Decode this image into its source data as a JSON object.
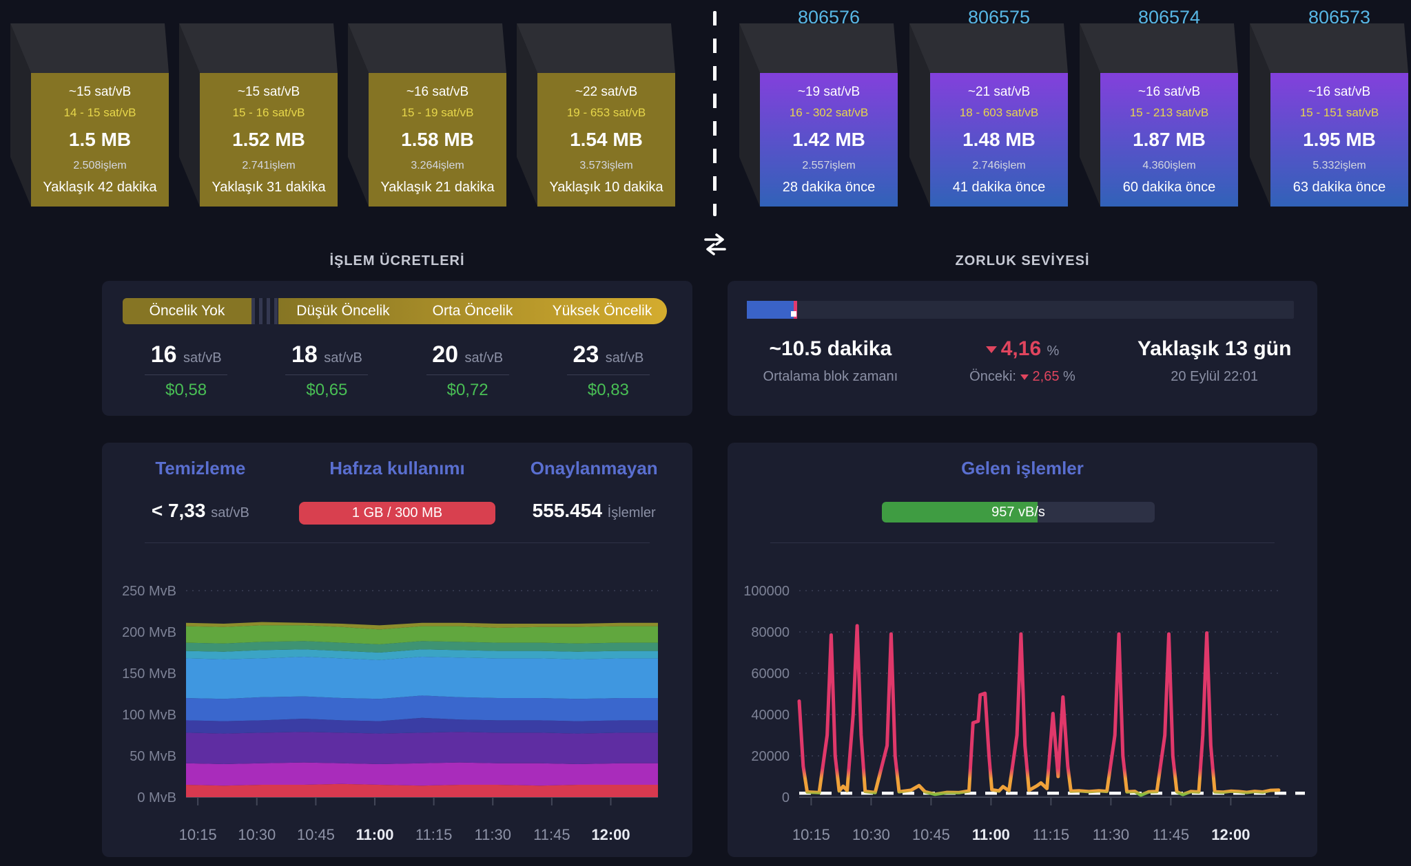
{
  "colors": {
    "background": "#10121d",
    "panel": "#1b1e2f",
    "pending_block": "#857424",
    "mined_block_top": "#8340dc",
    "mined_block_bottom": "#3162b8",
    "block_height_text": "#58b7e5",
    "range_text": "#e7d74b",
    "fee_price_green": "#49bf55",
    "difficulty_fill_blue": "#3a63c8",
    "difficulty_tick_red": "#e23a6e",
    "down_red": "#e0455e",
    "chart_title_blue": "#5a6fd0",
    "memory_badge_red": "#d8404f",
    "incoming_bar_green": "#3f9c42"
  },
  "mempool_side": {
    "blocks": [
      {
        "median": "~15 sat/vB",
        "range": "14 - 15 sat/vB",
        "size": "1.5 MB",
        "tx_count": "2.508işlem",
        "eta": "Yaklaşık 42 dakika"
      },
      {
        "median": "~15 sat/vB",
        "range": "15 - 16 sat/vB",
        "size": "1.52 MB",
        "tx_count": "2.741işlem",
        "eta": "Yaklaşık 31 dakika"
      },
      {
        "median": "~16 sat/vB",
        "range": "15 - 19 sat/vB",
        "size": "1.58 MB",
        "tx_count": "3.264işlem",
        "eta": "Yaklaşık 21 dakika"
      },
      {
        "median": "~22 sat/vB",
        "range": "19 - 653 sat/vB",
        "size": "1.54 MB",
        "tx_count": "3.573işlem",
        "eta": "Yaklaşık 10 dakika"
      }
    ]
  },
  "chain_side": {
    "blocks": [
      {
        "height": "806576",
        "median": "~19 sat/vB",
        "range": "16 - 302 sat/vB",
        "size": "1.42 MB",
        "tx_count": "2.557işlem",
        "age": "28 dakika önce"
      },
      {
        "height": "806575",
        "median": "~21 sat/vB",
        "range": "18 - 603 sat/vB",
        "size": "1.48 MB",
        "tx_count": "2.746işlem",
        "age": "41 dakika önce"
      },
      {
        "height": "806574",
        "median": "~16 sat/vB",
        "range": "15 - 213 sat/vB",
        "size": "1.87 MB",
        "tx_count": "4.360işlem",
        "age": "60 dakika önce"
      },
      {
        "height": "806573",
        "median": "~16 sat/vB",
        "range": "15 - 151 sat/vB",
        "size": "1.95 MB",
        "tx_count": "5.332işlem",
        "age": "63 dakika önce"
      }
    ]
  },
  "fees_panel": {
    "title": "İŞLEM ÜCRETLERİ",
    "tabs": [
      {
        "label": "Öncelik Yok"
      },
      {
        "label": "Düşük Öncelik"
      },
      {
        "label": "Orta Öncelik"
      },
      {
        "label": "Yüksek Öncelik"
      }
    ],
    "items": [
      {
        "fee": "16",
        "unit": "sat/vB",
        "price": "$0,58"
      },
      {
        "fee": "18",
        "unit": "sat/vB",
        "price": "$0,65"
      },
      {
        "fee": "20",
        "unit": "sat/vB",
        "price": "$0,72"
      },
      {
        "fee": "23",
        "unit": "sat/vB",
        "price": "$0,83"
      }
    ]
  },
  "difficulty_panel": {
    "title": "ZORLUK SEVİYESİ",
    "progress_pct": 8.6,
    "avg_block": {
      "value": "~10.5 dakika",
      "label": "Ortalama blok zamanı"
    },
    "change": {
      "value": "4,16",
      "unit": "%",
      "prev_label": "Önceki:",
      "prev_value": "2,65",
      "prev_unit": "%"
    },
    "retarget": {
      "value": "Yaklaşık 13 gün",
      "date": "20 Eylül 22:01"
    }
  },
  "mempool_panel": {
    "clearing": {
      "title": "Temizleme",
      "value": "< 7,33",
      "unit": "sat/vB"
    },
    "memory": {
      "title": "Hafıza kullanımı",
      "badge": "1 GB / 300 MB"
    },
    "unconfirmed": {
      "title": "Onaylanmayan",
      "value": "555.454",
      "unit": "İşlemler"
    }
  },
  "incoming_panel": {
    "title": "Gelen işlemler",
    "rate_label": "957 vB/s",
    "bar_pct": 57
  },
  "chart_data": [
    {
      "type": "area",
      "title": "Mempool by vBytes",
      "ylabel_suffix": " MvB",
      "y_ticks": [
        0,
        50,
        100,
        150,
        200,
        250
      ],
      "ylim": [
        0,
        250
      ],
      "x_ticks": [
        {
          "label": "10:15",
          "bold": false
        },
        {
          "label": "10:30",
          "bold": false
        },
        {
          "label": "10:45",
          "bold": false
        },
        {
          "label": "11:00",
          "bold": true
        },
        {
          "label": "11:15",
          "bold": false
        },
        {
          "label": "11:30",
          "bold": false
        },
        {
          "label": "11:45",
          "bold": false
        },
        {
          "label": "12:00",
          "bold": true
        }
      ],
      "x_range_min": [
        0,
        120
      ],
      "first_tick_min": 3,
      "tick_step_min": 15,
      "xs_frac": [
        0,
        0.08,
        0.16,
        0.25,
        0.33,
        0.41,
        0.5,
        0.58,
        0.66,
        0.75,
        0.83,
        0.92,
        1
      ],
      "series": [
        {
          "color": "#d8394f",
          "tops": [
            15,
            14,
            15,
            15,
            16,
            15,
            14,
            15,
            15,
            14,
            15,
            15,
            15
          ]
        },
        {
          "color": "#a92cbb",
          "tops": [
            41,
            40,
            41,
            42,
            41,
            40,
            41,
            42,
            41,
            41,
            40,
            41,
            41
          ]
        },
        {
          "color": "#5f2da2",
          "tops": [
            78,
            77,
            78,
            79,
            78,
            77,
            78,
            79,
            78,
            78,
            77,
            78,
            78
          ]
        },
        {
          "color": "#3a3da4",
          "tops": [
            93,
            92,
            93,
            95,
            93,
            92,
            96,
            94,
            93,
            93,
            92,
            93,
            93
          ]
        },
        {
          "color": "#3a67cd",
          "tops": [
            120,
            119,
            121,
            122,
            120,
            119,
            123,
            121,
            120,
            120,
            119,
            120,
            120
          ]
        },
        {
          "color": "#3f97e0",
          "tops": [
            168,
            167,
            168,
            170,
            168,
            166,
            170,
            169,
            168,
            168,
            167,
            168,
            168
          ]
        },
        {
          "color": "#3ba4c5",
          "tops": [
            177,
            176,
            178,
            179,
            177,
            175,
            179,
            178,
            177,
            177,
            176,
            177,
            177
          ]
        },
        {
          "color": "#3e9373",
          "tops": [
            187,
            186,
            188,
            189,
            187,
            185,
            189,
            188,
            187,
            187,
            186,
            187,
            187
          ]
        },
        {
          "color": "#61a73e",
          "tops": [
            207,
            206,
            208,
            208,
            206,
            203,
            207,
            207,
            205,
            206,
            206,
            207,
            207
          ]
        },
        {
          "color": "#8e8d2c",
          "tops": [
            211,
            210,
            212,
            211,
            210,
            208,
            211,
            211,
            210,
            210,
            210,
            211,
            211
          ]
        }
      ],
      "grid": "dotted"
    },
    {
      "type": "line",
      "title": "Gelen işlemler (vB/s)",
      "y_ticks": [
        0,
        20000,
        40000,
        60000,
        80000,
        100000
      ],
      "ylim": [
        0,
        100000
      ],
      "x_ticks": [
        {
          "label": "10:15",
          "bold": false
        },
        {
          "label": "10:30",
          "bold": false
        },
        {
          "label": "10:45",
          "bold": false
        },
        {
          "label": "11:00",
          "bold": true
        },
        {
          "label": "11:15",
          "bold": false
        },
        {
          "label": "11:30",
          "bold": false
        },
        {
          "label": "11:45",
          "bold": false
        },
        {
          "label": "12:00",
          "bold": true
        }
      ],
      "x_range_min": [
        0,
        120
      ],
      "first_tick_min": 3,
      "tick_step_min": 15,
      "threshold": 1900,
      "line_gradient": {
        "low": "#7fbc42",
        "mid": "#f0a23a",
        "high": "#e0386a"
      },
      "points": [
        [
          0,
          46500
        ],
        [
          1,
          15000
        ],
        [
          2,
          2500
        ],
        [
          5,
          2200
        ],
        [
          7,
          30000
        ],
        [
          8,
          78500
        ],
        [
          9,
          20000
        ],
        [
          10,
          3000
        ],
        [
          11,
          5300
        ],
        [
          12,
          3200
        ],
        [
          13.5,
          40000
        ],
        [
          14.5,
          83000
        ],
        [
          15.5,
          30000
        ],
        [
          16.5,
          2800
        ],
        [
          19,
          2200
        ],
        [
          22,
          25000
        ],
        [
          23,
          79000
        ],
        [
          24,
          20000
        ],
        [
          25,
          2600
        ],
        [
          28,
          3400
        ],
        [
          30,
          5600
        ],
        [
          31.5,
          2600
        ],
        [
          34,
          1400
        ],
        [
          37,
          2300
        ],
        [
          40,
          2200
        ],
        [
          42.5,
          3000
        ],
        [
          43.5,
          36000
        ],
        [
          44.8,
          36800
        ],
        [
          45.3,
          49500
        ],
        [
          46.5,
          50300
        ],
        [
          47.5,
          20000
        ],
        [
          48.2,
          3600
        ],
        [
          50,
          3000
        ],
        [
          51,
          5100
        ],
        [
          52.5,
          3100
        ],
        [
          54.5,
          30000
        ],
        [
          55.5,
          79000
        ],
        [
          56.5,
          25000
        ],
        [
          57.5,
          3300
        ],
        [
          59.5,
          5500
        ],
        [
          60.5,
          6900
        ],
        [
          62,
          4200
        ],
        [
          63.5,
          40500
        ],
        [
          64.8,
          10000
        ],
        [
          66,
          48500
        ],
        [
          67.2,
          15000
        ],
        [
          68,
          2900
        ],
        [
          70,
          3100
        ],
        [
          72.5,
          2700
        ],
        [
          75,
          3100
        ],
        [
          77,
          2800
        ],
        [
          79,
          30000
        ],
        [
          80,
          79000
        ],
        [
          81,
          20000
        ],
        [
          82,
          2600
        ],
        [
          84,
          2800
        ],
        [
          85.5,
          1000
        ],
        [
          87.5,
          2600
        ],
        [
          89.5,
          2700
        ],
        [
          91.5,
          30000
        ],
        [
          92.5,
          79000
        ],
        [
          93.5,
          20000
        ],
        [
          94.5,
          2600
        ],
        [
          96,
          1300
        ],
        [
          98,
          2700
        ],
        [
          100,
          2500
        ],
        [
          101,
          30000
        ],
        [
          102,
          79500
        ],
        [
          103,
          25000
        ],
        [
          104,
          2600
        ],
        [
          106,
          2400
        ],
        [
          108,
          2900
        ],
        [
          110,
          2700
        ],
        [
          112,
          2300
        ],
        [
          114,
          2800
        ],
        [
          116,
          2500
        ],
        [
          118,
          3300
        ],
        [
          120,
          3400
        ]
      ],
      "grid": "dotted"
    }
  ]
}
